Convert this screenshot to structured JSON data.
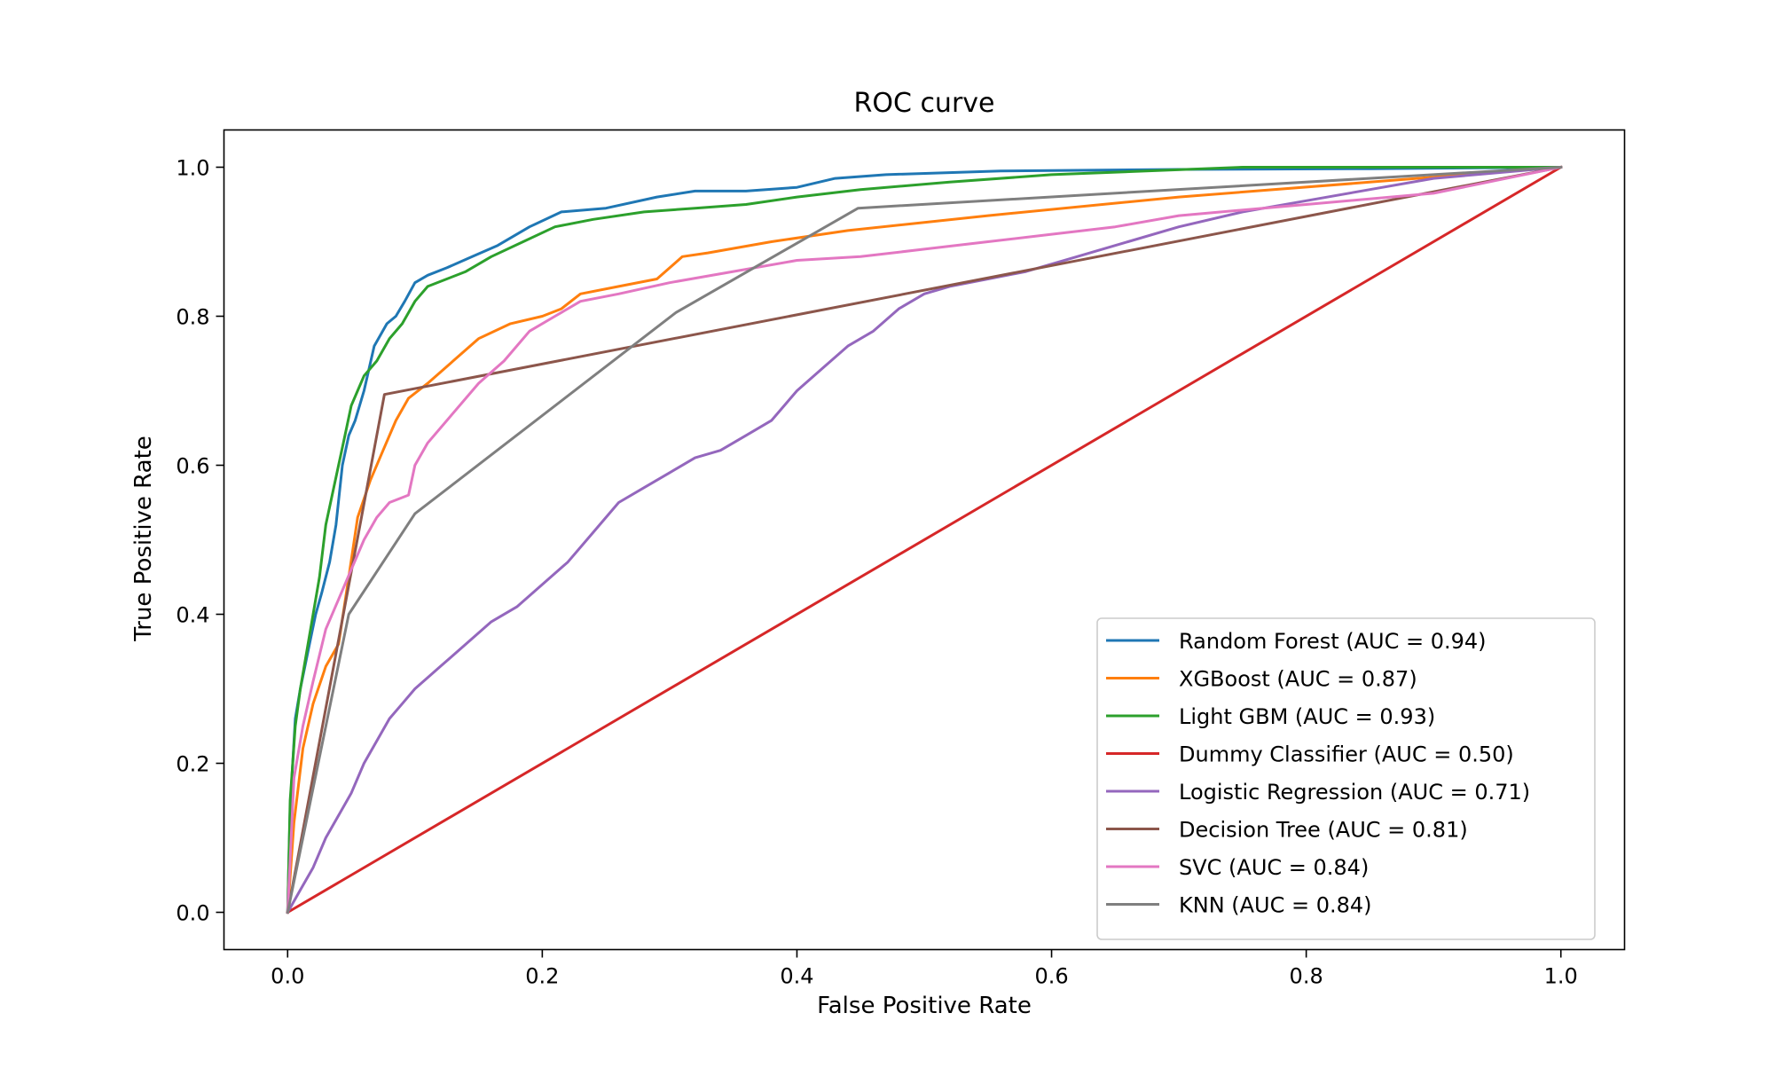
{
  "chart_data": {
    "type": "line",
    "title": "ROC curve",
    "xlabel": "False Positive Rate",
    "ylabel": "True Positive Rate",
    "xlim": [
      -0.05,
      1.05
    ],
    "ylim": [
      -0.05,
      1.05
    ],
    "xticks": [
      0.0,
      0.2,
      0.4,
      0.6,
      0.8,
      1.0
    ],
    "yticks": [
      0.0,
      0.2,
      0.4,
      0.6,
      0.8,
      1.0
    ],
    "xtick_labels": [
      "0.0",
      "0.2",
      "0.4",
      "0.6",
      "0.8",
      "1.0"
    ],
    "ytick_labels": [
      "0.0",
      "0.2",
      "0.4",
      "0.6",
      "0.8",
      "1.0"
    ],
    "grid": false,
    "legend_position": "lower-right",
    "series": [
      {
        "name": "Random Forest (AUC = 0.94)",
        "color": "#1f77b4",
        "x": [
          0,
          0.002,
          0.006,
          0.01,
          0.016,
          0.022,
          0.027,
          0.033,
          0.038,
          0.043,
          0.048,
          0.053,
          0.06,
          0.068,
          0.078,
          0.085,
          0.092,
          0.1,
          0.11,
          0.125,
          0.145,
          0.165,
          0.19,
          0.215,
          0.25,
          0.29,
          0.32,
          0.36,
          0.4,
          0.43,
          0.47,
          0.56,
          0.7,
          0.85,
          1.0
        ],
        "y": [
          0,
          0.14,
          0.26,
          0.3,
          0.35,
          0.4,
          0.43,
          0.47,
          0.52,
          0.6,
          0.64,
          0.66,
          0.7,
          0.76,
          0.79,
          0.8,
          0.82,
          0.845,
          0.855,
          0.865,
          0.88,
          0.895,
          0.92,
          0.94,
          0.945,
          0.96,
          0.968,
          0.968,
          0.973,
          0.985,
          0.99,
          0.995,
          0.997,
          0.998,
          1.0
        ]
      },
      {
        "name": "XGBoost (AUC = 0.87)",
        "color": "#ff7f0e",
        "x": [
          0,
          0.005,
          0.012,
          0.02,
          0.03,
          0.04,
          0.048,
          0.055,
          0.065,
          0.075,
          0.085,
          0.095,
          0.11,
          0.13,
          0.15,
          0.175,
          0.2,
          0.215,
          0.23,
          0.26,
          0.29,
          0.31,
          0.33,
          0.38,
          0.44,
          0.55,
          0.7,
          0.85,
          1.0
        ],
        "y": [
          0,
          0.12,
          0.22,
          0.28,
          0.33,
          0.36,
          0.45,
          0.53,
          0.58,
          0.62,
          0.66,
          0.69,
          0.71,
          0.74,
          0.77,
          0.79,
          0.8,
          0.81,
          0.83,
          0.84,
          0.85,
          0.88,
          0.885,
          0.9,
          0.915,
          0.935,
          0.96,
          0.98,
          1.0
        ]
      },
      {
        "name": "Light GBM (AUC = 0.93)",
        "color": "#2ca02c",
        "x": [
          0,
          0.002,
          0.006,
          0.01,
          0.015,
          0.02,
          0.025,
          0.03,
          0.035,
          0.04,
          0.045,
          0.05,
          0.055,
          0.06,
          0.07,
          0.08,
          0.09,
          0.1,
          0.11,
          0.125,
          0.14,
          0.16,
          0.185,
          0.21,
          0.24,
          0.28,
          0.32,
          0.36,
          0.4,
          0.45,
          0.52,
          0.6,
          0.75,
          1.0
        ],
        "y": [
          0,
          0.15,
          0.25,
          0.3,
          0.35,
          0.4,
          0.45,
          0.52,
          0.56,
          0.6,
          0.64,
          0.68,
          0.7,
          0.72,
          0.74,
          0.77,
          0.79,
          0.82,
          0.84,
          0.85,
          0.86,
          0.88,
          0.9,
          0.92,
          0.93,
          0.94,
          0.945,
          0.95,
          0.96,
          0.97,
          0.98,
          0.99,
          1.0,
          1.0
        ]
      },
      {
        "name": "Dummy Classifier (AUC = 0.50)",
        "color": "#d62728",
        "x": [
          0,
          1.0
        ],
        "y": [
          0,
          1.0
        ]
      },
      {
        "name": "Logistic Regression (AUC = 0.71)",
        "color": "#9467bd",
        "x": [
          0,
          0.01,
          0.02,
          0.03,
          0.04,
          0.05,
          0.06,
          0.07,
          0.08,
          0.09,
          0.1,
          0.12,
          0.14,
          0.16,
          0.18,
          0.2,
          0.22,
          0.24,
          0.26,
          0.28,
          0.3,
          0.32,
          0.34,
          0.36,
          0.38,
          0.4,
          0.42,
          0.44,
          0.46,
          0.48,
          0.5,
          0.52,
          0.55,
          0.58,
          0.62,
          0.66,
          0.7,
          0.75,
          0.8,
          0.85,
          0.9,
          1.0
        ],
        "y": [
          0,
          0.03,
          0.06,
          0.1,
          0.13,
          0.16,
          0.2,
          0.23,
          0.26,
          0.28,
          0.3,
          0.33,
          0.36,
          0.39,
          0.41,
          0.44,
          0.47,
          0.51,
          0.55,
          0.57,
          0.59,
          0.61,
          0.62,
          0.64,
          0.66,
          0.7,
          0.73,
          0.76,
          0.78,
          0.81,
          0.83,
          0.84,
          0.85,
          0.86,
          0.88,
          0.9,
          0.92,
          0.94,
          0.955,
          0.97,
          0.985,
          1.0
        ]
      },
      {
        "name": "Decision Tree (AUC = 0.81)",
        "color": "#8c564b",
        "x": [
          0,
          0.076,
          1.0
        ],
        "y": [
          0,
          0.695,
          1.0
        ]
      },
      {
        "name": "SVC (AUC = 0.84)",
        "color": "#e377c2",
        "x": [
          0,
          0.005,
          0.012,
          0.02,
          0.03,
          0.04,
          0.05,
          0.06,
          0.07,
          0.08,
          0.095,
          0.1,
          0.11,
          0.13,
          0.15,
          0.17,
          0.19,
          0.21,
          0.23,
          0.26,
          0.3,
          0.35,
          0.4,
          0.45,
          0.5,
          0.55,
          0.6,
          0.65,
          0.7,
          0.8,
          0.9,
          1.0
        ],
        "y": [
          0,
          0.18,
          0.25,
          0.31,
          0.38,
          0.42,
          0.46,
          0.5,
          0.53,
          0.55,
          0.56,
          0.6,
          0.63,
          0.67,
          0.71,
          0.74,
          0.78,
          0.8,
          0.82,
          0.83,
          0.845,
          0.86,
          0.875,
          0.88,
          0.89,
          0.9,
          0.91,
          0.92,
          0.935,
          0.95,
          0.965,
          1.0
        ]
      },
      {
        "name": "KNN (AUC = 0.84)",
        "color": "#7f7f7f",
        "x": [
          0,
          0.048,
          0.1,
          0.305,
          0.448,
          1.0
        ],
        "y": [
          0,
          0.4,
          0.535,
          0.805,
          0.945,
          1.0
        ]
      }
    ]
  }
}
